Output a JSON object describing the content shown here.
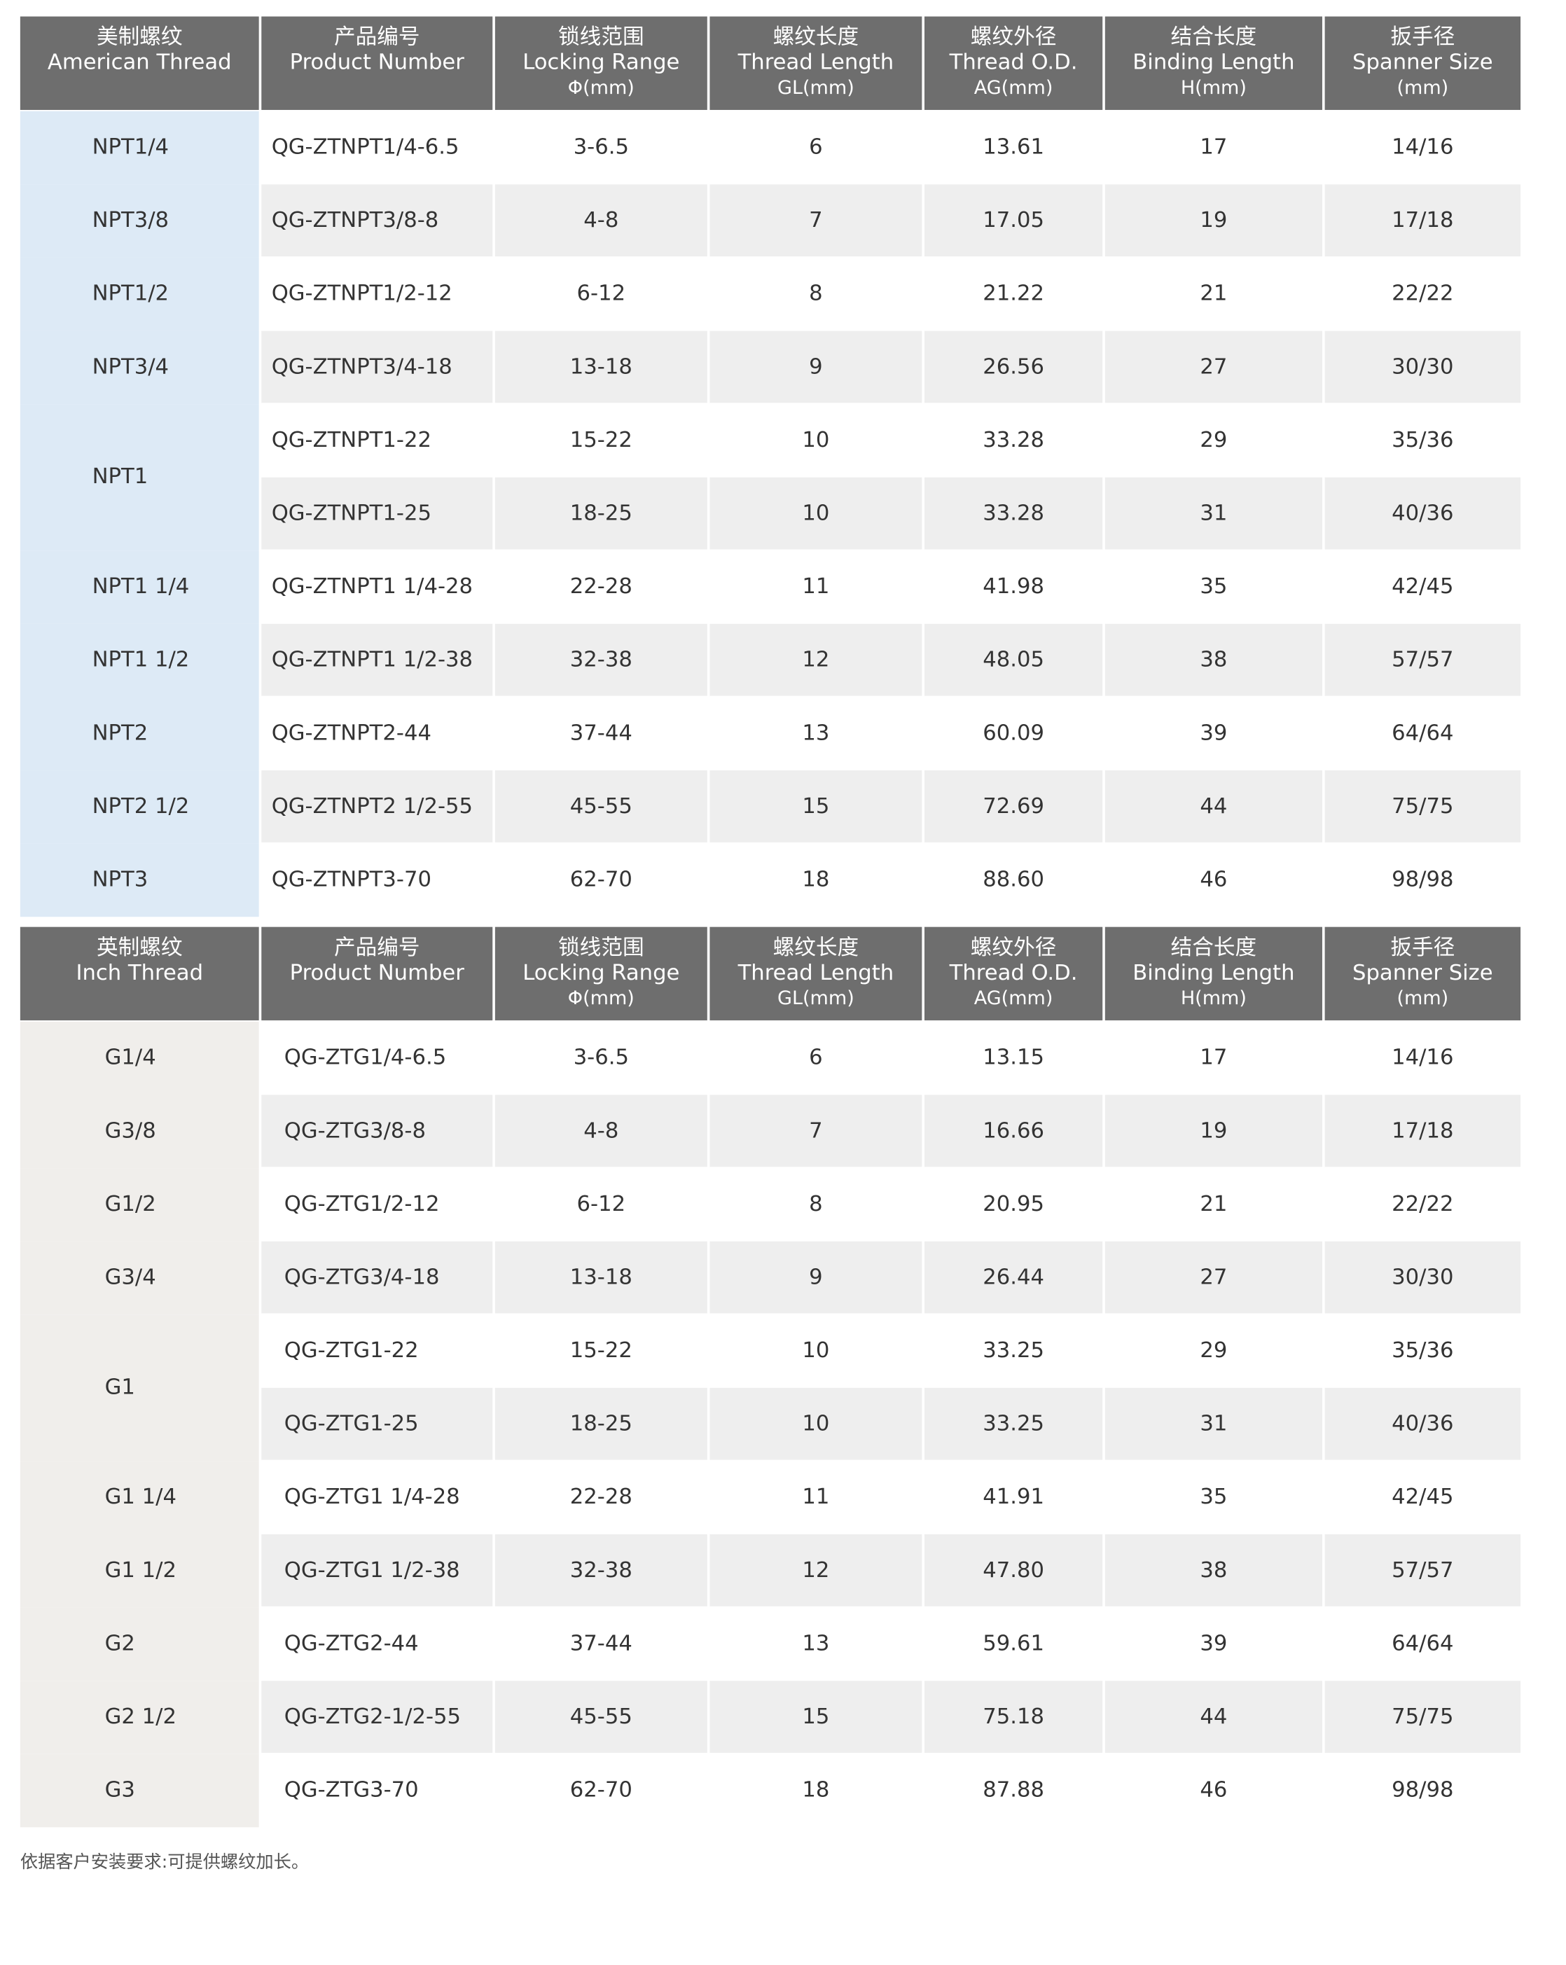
{
  "tables": [
    {
      "header": [
        [
          "美制螺纹",
          "American Thread"
        ],
        [
          "产品编号",
          "Product Number"
        ],
        [
          "锁线范围",
          "Locking Range",
          "Φ(mm)"
        ],
        [
          "螺纹长度",
          "Thread Length",
          "GL(mm)"
        ],
        [
          "螺纹外径",
          "Thread O.D.",
          "AG(mm)"
        ],
        [
          "结合长度",
          "Binding Length",
          "H(mm)"
        ],
        [
          "扳手径",
          "Spanner Size",
          "(mm)"
        ]
      ],
      "groups": [
        {
          "thread": "NPT1/4",
          "rows": [
            [
              "QG-ZTNPT1/4-6.5",
              "3-6.5",
              "6",
              "13.61",
              "17",
              "14/16"
            ]
          ]
        },
        {
          "thread": "NPT3/8",
          "rows": [
            [
              "QG-ZTNPT3/8-8",
              "4-8",
              "7",
              "17.05",
              "19",
              "17/18"
            ]
          ]
        },
        {
          "thread": "NPT1/2",
          "rows": [
            [
              "QG-ZTNPT1/2-12",
              "6-12",
              "8",
              "21.22",
              "21",
              "22/22"
            ]
          ]
        },
        {
          "thread": "NPT3/4",
          "rows": [
            [
              "QG-ZTNPT3/4-18",
              "13-18",
              "9",
              "26.56",
              "27",
              "30/30"
            ]
          ]
        },
        {
          "thread": "NPT1",
          "rows": [
            [
              "QG-ZTNPT1-22",
              "15-22",
              "10",
              "33.28",
              "29",
              "35/36"
            ],
            [
              "QG-ZTNPT1-25",
              "18-25",
              "10",
              "33.28",
              "31",
              "40/36"
            ]
          ]
        },
        {
          "thread": "NPT1 1/4",
          "rows": [
            [
              "QG-ZTNPT1 1/4-28",
              "22-28",
              "11",
              "41.98",
              "35",
              "42/45"
            ]
          ]
        },
        {
          "thread": "NPT1 1/2",
          "rows": [
            [
              "QG-ZTNPT1 1/2-38",
              "32-38",
              "12",
              "48.05",
              "38",
              "57/57"
            ]
          ]
        },
        {
          "thread": "NPT2",
          "rows": [
            [
              "QG-ZTNPT2-44",
              "37-44",
              "13",
              "60.09",
              "39",
              "64/64"
            ]
          ]
        },
        {
          "thread": "NPT2 1/2",
          "rows": [
            [
              "QG-ZTNPT2 1/2-55",
              "45-55",
              "15",
              "72.69",
              "44",
              "75/75"
            ]
          ]
        },
        {
          "thread": "NPT3",
          "rows": [
            [
              "QG-ZTNPT3-70",
              "62-70",
              "18",
              "88.60",
              "46",
              "98/98"
            ]
          ]
        }
      ]
    },
    {
      "header": [
        [
          "英制螺纹",
          "Inch Thread"
        ],
        [
          "产品编号",
          "Product Number"
        ],
        [
          "锁线范围",
          "Locking Range",
          "Φ(mm)"
        ],
        [
          "螺纹长度",
          "Thread Length",
          "GL(mm)"
        ],
        [
          "螺纹外径",
          "Thread O.D.",
          "AG(mm)"
        ],
        [
          "结合长度",
          "Binding Length",
          "H(mm)"
        ],
        [
          "扳手径",
          "Spanner Size",
          "(mm)"
        ]
      ],
      "groups": [
        {
          "thread": "G1/4",
          "rows": [
            [
              "QG-ZTG1/4-6.5",
              "3-6.5",
              "6",
              "13.15",
              "17",
              "14/16"
            ]
          ]
        },
        {
          "thread": "G3/8",
          "rows": [
            [
              "QG-ZTG3/8-8",
              "4-8",
              "7",
              "16.66",
              "19",
              "17/18"
            ]
          ]
        },
        {
          "thread": "G1/2",
          "rows": [
            [
              "QG-ZTG1/2-12",
              "6-12",
              "8",
              "20.95",
              "21",
              "22/22"
            ]
          ]
        },
        {
          "thread": "G3/4",
          "rows": [
            [
              "QG-ZTG3/4-18",
              "13-18",
              "9",
              "26.44",
              "27",
              "30/30"
            ]
          ]
        },
        {
          "thread": "G1",
          "rows": [
            [
              "QG-ZTG1-22",
              "15-22",
              "10",
              "33.25",
              "29",
              "35/36"
            ],
            [
              "QG-ZTG1-25",
              "18-25",
              "10",
              "33.25",
              "31",
              "40/36"
            ]
          ]
        },
        {
          "thread": "G1 1/4",
          "rows": [
            [
              "QG-ZTG1 1/4-28",
              "22-28",
              "11",
              "41.91",
              "35",
              "42/45"
            ]
          ]
        },
        {
          "thread": "G1 1/2",
          "rows": [
            [
              "QG-ZTG1 1/2-38",
              "32-38",
              "12",
              "47.80",
              "38",
              "57/57"
            ]
          ]
        },
        {
          "thread": "G2",
          "rows": [
            [
              "QG-ZTG2-44",
              "37-44",
              "13",
              "59.61",
              "39",
              "64/64"
            ]
          ]
        },
        {
          "thread": "G2 1/2",
          "rows": [
            [
              "QG-ZTG2-1/2-55",
              "45-55",
              "15",
              "75.18",
              "44",
              "75/75"
            ]
          ]
        },
        {
          "thread": "G3",
          "rows": [
            [
              "QG-ZTG3-70",
              "62-70",
              "18",
              "87.88",
              "46",
              "98/98"
            ]
          ]
        }
      ]
    }
  ],
  "footnote": "依据客户安装要求:可提供螺纹加长。"
}
